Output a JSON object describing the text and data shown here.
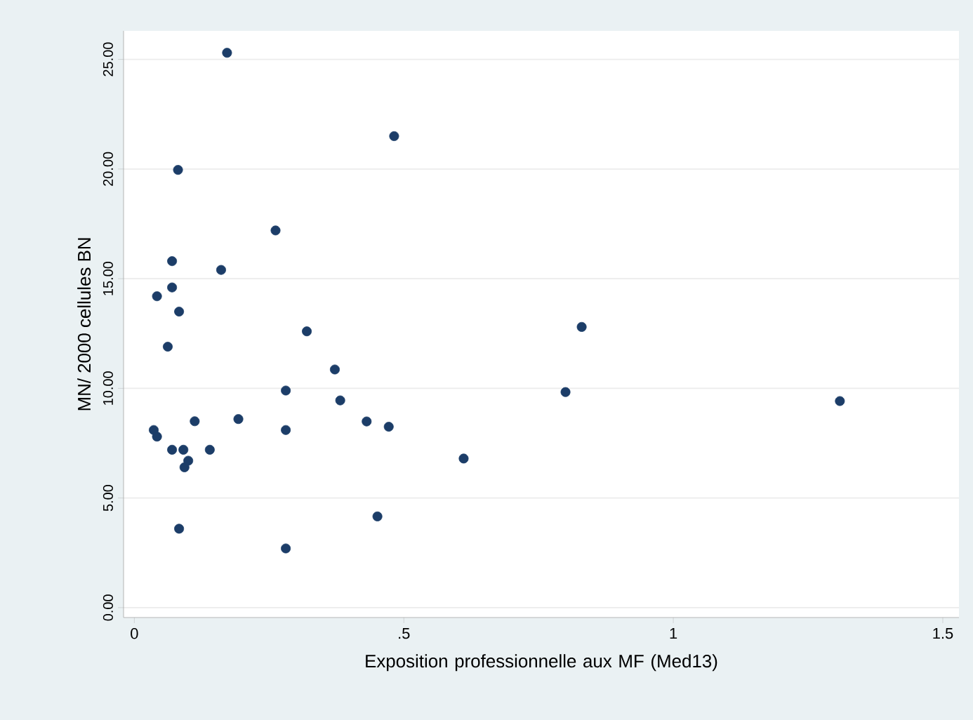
{
  "chart_data": {
    "type": "scatter",
    "xlabel": "Exposition professionnelle aux MF (Med13)",
    "ylabel": "MN/ 2000 cellules BN",
    "x": [
      0.172,
      0.081,
      0.07,
      0.07,
      0.042,
      0.083,
      0.062,
      0.161,
      0.262,
      0.32,
      0.281,
      0.281,
      0.281,
      0.372,
      0.382,
      0.036,
      0.042,
      0.112,
      0.193,
      0.07,
      0.091,
      0.093,
      0.1,
      0.14,
      0.083,
      0.482,
      0.431,
      0.472,
      0.611,
      0.451,
      0.83,
      0.8,
      1.309
    ],
    "values": [
      25.3,
      19.96,
      15.8,
      14.6,
      14.2,
      13.5,
      11.9,
      15.4,
      17.2,
      12.6,
      9.9,
      8.1,
      2.7,
      10.86,
      9.45,
      8.1,
      7.8,
      8.5,
      8.6,
      7.2,
      7.2,
      6.4,
      6.7,
      7.2,
      3.6,
      21.5,
      8.49,
      8.25,
      6.8,
      4.16,
      12.8,
      9.83,
      9.42
    ],
    "color": "#1c3d68",
    "marker": "circle",
    "grid": "y",
    "xlim": [
      -0.02,
      1.53
    ],
    "ylim": [
      -0.45,
      26.3
    ],
    "xticks": [
      0,
      {
        "value": 0.5,
        "label": ".5"
      },
      1,
      1.5
    ],
    "yticks": [
      {
        "value": 0,
        "label": "0.00"
      },
      {
        "value": 5,
        "label": "5.00"
      },
      {
        "value": 10,
        "label": "10.00"
      },
      {
        "value": 15,
        "label": "15.00"
      },
      {
        "value": 20,
        "label": "20.00"
      },
      {
        "value": 25,
        "label": "25.00"
      }
    ]
  }
}
